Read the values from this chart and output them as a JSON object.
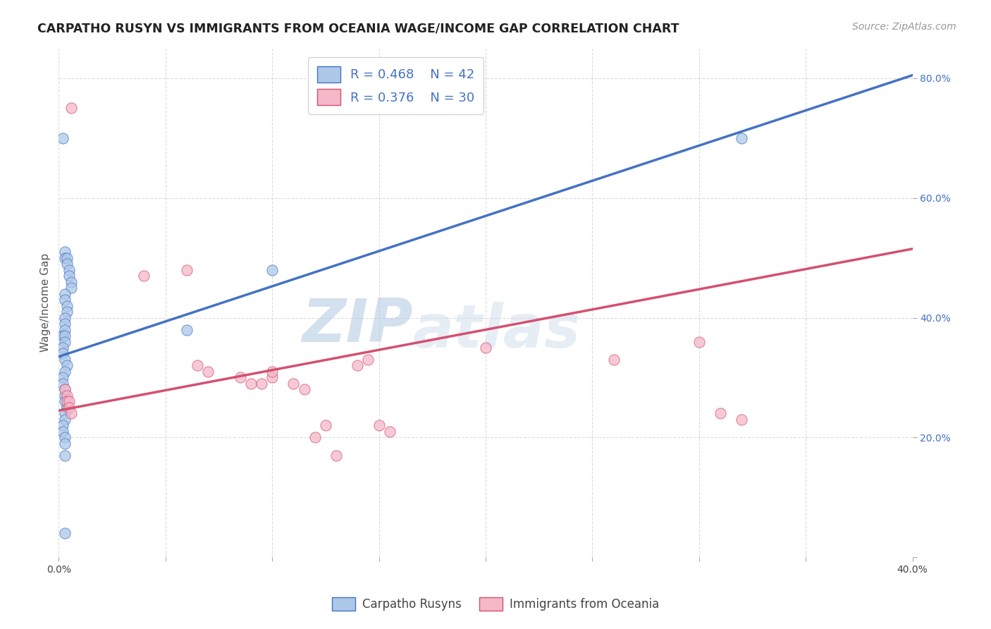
{
  "title": "CARPATHO RUSYN VS IMMIGRANTS FROM OCEANIA WAGE/INCOME GAP CORRELATION CHART",
  "source": "Source: ZipAtlas.com",
  "ylabel": "Wage/Income Gap",
  "xlim": [
    0.0,
    0.4
  ],
  "ylim": [
    0.0,
    0.85
  ],
  "xticks": [
    0.0,
    0.05,
    0.1,
    0.15,
    0.2,
    0.25,
    0.3,
    0.35,
    0.4
  ],
  "yticks": [
    0.0,
    0.2,
    0.4,
    0.6,
    0.8
  ],
  "ytick_labels": [
    "",
    "20.0%",
    "40.0%",
    "60.0%",
    "80.0%"
  ],
  "xtick_labels": [
    "0.0%",
    "",
    "",
    "",
    "",
    "",
    "",
    "",
    "40.0%"
  ],
  "blue_R": 0.468,
  "blue_N": 42,
  "pink_R": 0.376,
  "pink_N": 30,
  "blue_color": "#adc8e8",
  "blue_line_color": "#4472c4",
  "pink_color": "#f4b8c8",
  "pink_line_color": "#d45070",
  "blue_scatter_x": [
    0.002,
    0.003,
    0.003,
    0.004,
    0.004,
    0.005,
    0.005,
    0.006,
    0.006,
    0.003,
    0.003,
    0.004,
    0.004,
    0.003,
    0.003,
    0.003,
    0.002,
    0.003,
    0.003,
    0.002,
    0.002,
    0.003,
    0.004,
    0.003,
    0.002,
    0.002,
    0.003,
    0.003,
    0.003,
    0.004,
    0.004,
    0.003,
    0.003,
    0.002,
    0.002,
    0.003,
    0.003,
    0.003,
    0.06,
    0.1,
    0.32,
    0.003
  ],
  "blue_scatter_y": [
    0.7,
    0.51,
    0.5,
    0.5,
    0.49,
    0.48,
    0.47,
    0.46,
    0.45,
    0.44,
    0.43,
    0.42,
    0.41,
    0.4,
    0.39,
    0.38,
    0.37,
    0.37,
    0.36,
    0.35,
    0.34,
    0.33,
    0.32,
    0.31,
    0.3,
    0.29,
    0.28,
    0.27,
    0.26,
    0.25,
    0.25,
    0.24,
    0.23,
    0.22,
    0.21,
    0.2,
    0.19,
    0.17,
    0.38,
    0.48,
    0.7,
    0.04
  ],
  "pink_scatter_x": [
    0.003,
    0.004,
    0.004,
    0.005,
    0.005,
    0.006,
    0.006,
    0.04,
    0.06,
    0.065,
    0.07,
    0.085,
    0.09,
    0.095,
    0.1,
    0.1,
    0.11,
    0.115,
    0.12,
    0.125,
    0.13,
    0.14,
    0.145,
    0.15,
    0.155,
    0.2,
    0.26,
    0.3,
    0.31,
    0.32
  ],
  "pink_scatter_y": [
    0.28,
    0.27,
    0.26,
    0.26,
    0.25,
    0.24,
    0.75,
    0.47,
    0.48,
    0.32,
    0.31,
    0.3,
    0.29,
    0.29,
    0.3,
    0.31,
    0.29,
    0.28,
    0.2,
    0.22,
    0.17,
    0.32,
    0.33,
    0.22,
    0.21,
    0.35,
    0.33,
    0.36,
    0.24,
    0.23
  ],
  "blue_trendline_x": [
    0.0,
    0.4
  ],
  "blue_trendline_y": [
    0.335,
    0.805
  ],
  "pink_trendline_x": [
    0.0,
    0.4
  ],
  "pink_trendline_y": [
    0.245,
    0.515
  ],
  "watermark_zip": "ZIP",
  "watermark_atlas": "atlas",
  "background_color": "#ffffff",
  "grid_color": "#cccccc"
}
